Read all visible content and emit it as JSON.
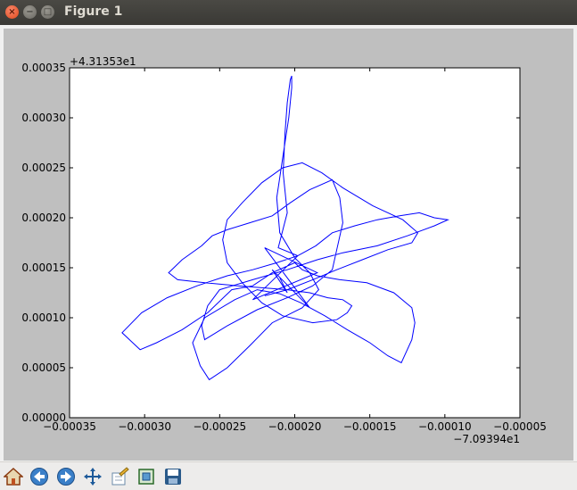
{
  "window": {
    "title": "Figure 1"
  },
  "toolbar": {
    "buttons": [
      "home-icon",
      "back-icon",
      "forward-icon",
      "pan-icon",
      "configure-subplots-icon",
      "zoom-rect-icon",
      "save-icon"
    ]
  },
  "chart_data": {
    "type": "line",
    "title": "",
    "xlabel": "",
    "ylabel": "",
    "x_offset_label": "−7.09394e1",
    "y_offset_label": "+4.31353e1",
    "xlim": [
      -0.00035,
      -5e-05
    ],
    "ylim": [
      0.0,
      0.00035
    ],
    "x_ticks": [
      "−0.00035",
      "−0.00030",
      "−0.00025",
      "−0.00020",
      "−0.00015",
      "−0.00010",
      "−0.00005"
    ],
    "y_ticks": [
      "0.00000",
      "0.00005",
      "0.00010",
      "0.00015",
      "0.00020",
      "0.00025",
      "0.00030",
      "0.00035"
    ],
    "x_tick_values": [
      -0.00035,
      -0.0003,
      -0.00025,
      -0.0002,
      -0.00015,
      -0.0001,
      -5e-05
    ],
    "y_tick_values": [
      0.0,
      5e-05,
      0.0001,
      0.00015,
      0.0002,
      0.00025,
      0.0003,
      0.00035
    ],
    "series": [
      {
        "color": "#0000ff",
        "x": [
          -0.00021,
          -0.000205,
          -0.000215,
          -0.00019,
          -0.00022,
          -0.000185,
          -0.000228,
          -0.000198,
          -0.000211,
          -0.000205,
          -0.0002077,
          -0.0002065,
          -0.000205,
          -0.000203,
          -0.000202,
          -0.000202,
          -0.000204,
          -0.000208,
          -0.000212,
          -0.00021,
          -0.0002,
          -0.00019,
          -0.000184,
          -0.000195,
          -0.000215,
          -0.00023,
          -0.000245,
          -0.000257,
          -0.000263,
          -0.000268,
          -0.00026,
          -0.00024,
          -0.000225,
          -0.00021,
          -0.000196,
          -0.00018,
          -0.000165,
          -0.00015,
          -0.000138,
          -0.000129,
          -0.000122,
          -0.00012,
          -0.000122,
          -0.000134,
          -0.000152,
          -0.00017,
          -0.000185,
          -0.000195,
          -0.0002,
          -0.000215,
          -0.000228,
          -0.000242,
          -0.000258,
          -0.000275,
          -0.000292,
          -0.000303,
          -0.000315,
          -0.000302,
          -0.000285,
          -0.000265,
          -0.000245,
          -0.000228,
          -0.000212,
          -0.000198,
          -0.000186,
          -0.000175,
          -0.00016,
          -0.000145,
          -0.00013,
          -0.000117,
          -0.000107,
          -9.8e-05,
          -0.000107,
          -0.000125,
          -0.000145,
          -0.000168,
          -0.000185,
          -0.000205,
          -0.000228,
          -0.00025,
          -0.000258,
          -0.000262,
          -0.00026,
          -0.000245,
          -0.000225,
          -0.000205,
          -0.000188,
          -0.000175,
          -0.000172,
          -0.000168,
          -0.00017,
          -0.000175,
          -0.00019,
          -0.000203,
          -0.000215,
          -0.00023,
          -0.000245,
          -0.000255,
          -0.000262,
          -0.000275,
          -0.000284,
          -0.000278,
          -0.00026,
          -0.000238,
          -0.000222,
          -0.000205,
          -0.00019,
          -0.000178,
          -0.000168,
          -0.000162,
          -0.000165,
          -0.000172,
          -0.000188,
          -0.000208,
          -0.000222,
          -0.000235,
          -0.000245,
          -0.000248,
          -0.000245,
          -0.000235,
          -0.000222,
          -0.000208,
          -0.000195,
          -0.000182,
          -0.000168,
          -0.000148,
          -0.000128,
          -0.000118,
          -0.000122,
          -0.000138,
          -0.000155,
          -0.000172,
          -0.000188,
          -0.000205,
          -0.00022
        ],
        "y": [
          0.00014,
          0.000125,
          0.000148,
          0.00011,
          0.00017,
          0.000145,
          0.000118,
          0.000162,
          0.00017,
          0.000205,
          0.000245,
          0.000285,
          0.000315,
          0.000338,
          0.000342,
          0.00033,
          0.0003,
          0.00026,
          0.00022,
          0.000185,
          0.00016,
          0.000145,
          0.000128,
          0.00011,
          9.5e-05,
          7.2e-05,
          5e-05,
          3.8e-05,
          5.2e-05,
          7.5e-05,
          0.0001,
          0.000118,
          0.000128,
          0.000124,
          0.000115,
          0.000102,
          8.8e-05,
          7.5e-05,
          6.2e-05,
          5.5e-05,
          7.8e-05,
          9.5e-05,
          0.00011,
          0.000125,
          0.000135,
          0.000138,
          0.000142,
          0.000148,
          0.000155,
          0.000145,
          0.000132,
          0.000128,
          0.000105,
          8.8e-05,
          7.5e-05,
          6.8e-05,
          8.5e-05,
          0.000105,
          0.00012,
          0.000132,
          0.000142,
          0.000148,
          0.000155,
          0.000162,
          0.000172,
          0.000185,
          0.000192,
          0.000198,
          0.000202,
          0.000205,
          0.0002,
          0.000198,
          0.000192,
          0.000182,
          0.000172,
          0.000165,
          0.000158,
          0.000148,
          0.000138,
          0.000128,
          0.000112,
          9.2e-05,
          7.8e-05,
          9.2e-05,
          0.000108,
          0.00012,
          0.000132,
          0.000148,
          0.000168,
          0.000195,
          0.00022,
          0.000238,
          0.000228,
          0.000215,
          0.000202,
          0.000195,
          0.000188,
          0.000182,
          0.000172,
          0.000158,
          0.000145,
          0.000138,
          0.000135,
          0.000132,
          0.00013,
          0.000128,
          0.000125,
          0.00012,
          0.000118,
          0.000112,
          0.000105,
          9.8e-05,
          9.5e-05,
          0.000102,
          0.000115,
          0.000135,
          0.000155,
          0.000178,
          0.000198,
          0.000215,
          0.000235,
          0.00025,
          0.000255,
          0.000245,
          0.00023,
          0.000212,
          0.000198,
          0.000185,
          0.000175,
          0.000168,
          0.000158,
          0.000148,
          0.000138,
          0.000128,
          0.000122
        ]
      }
    ]
  }
}
